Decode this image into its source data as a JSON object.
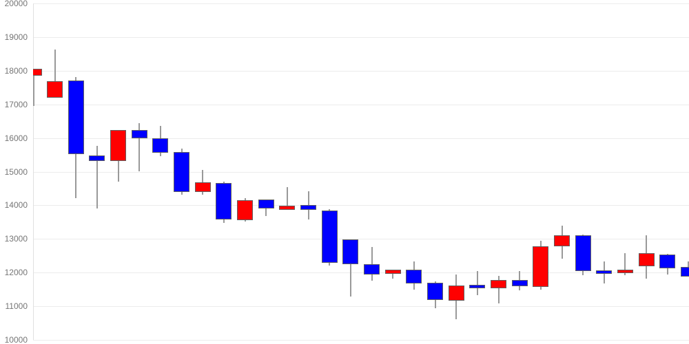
{
  "chart_data": {
    "type": "candlestick",
    "title": "",
    "xlabel": "",
    "ylabel": "",
    "grid": true,
    "legend": "none",
    "y_axis": {
      "min": 10000,
      "max": 20000,
      "step": 1000,
      "tick_labels": [
        "20000",
        "19000",
        "18000",
        "17000",
        "16000",
        "15000",
        "14000",
        "13000",
        "12000",
        "11000",
        "10000"
      ]
    },
    "colors": {
      "up": "#ff0000",
      "down": "#0000ff",
      "wick": "#999999",
      "candle_border": "#606060",
      "grid": "#ececec",
      "axis_line": "#e0e0e0",
      "label": "#757575",
      "background": "#ffffff"
    },
    "candles": [
      {
        "dir": "up",
        "open": 17850,
        "high": 18050,
        "low": 16950,
        "close": 18050
      },
      {
        "dir": "up",
        "open": 17200,
        "high": 18630,
        "low": 17200,
        "close": 17680
      },
      {
        "dir": "down",
        "open": 17700,
        "high": 17820,
        "low": 14220,
        "close": 15520
      },
      {
        "dir": "down",
        "open": 15490,
        "high": 15770,
        "low": 13910,
        "close": 15310
      },
      {
        "dir": "up",
        "open": 15310,
        "high": 16240,
        "low": 14700,
        "close": 16240
      },
      {
        "dir": "down",
        "open": 16240,
        "high": 16440,
        "low": 15000,
        "close": 15990
      },
      {
        "dir": "down",
        "open": 16000,
        "high": 16350,
        "low": 15450,
        "close": 15570
      },
      {
        "dir": "down",
        "open": 15580,
        "high": 15680,
        "low": 14310,
        "close": 14400
      },
      {
        "dir": "up",
        "open": 14400,
        "high": 15050,
        "low": 14310,
        "close": 14690
      },
      {
        "dir": "down",
        "open": 14670,
        "high": 14700,
        "low": 13470,
        "close": 13580
      },
      {
        "dir": "up",
        "open": 13560,
        "high": 14210,
        "low": 13510,
        "close": 14160
      },
      {
        "dir": "down",
        "open": 14170,
        "high": 14170,
        "low": 13680,
        "close": 13900
      },
      {
        "dir": "up",
        "open": 13860,
        "high": 14540,
        "low": 13860,
        "close": 13980
      },
      {
        "dir": "down",
        "open": 14010,
        "high": 14420,
        "low": 13570,
        "close": 13870
      },
      {
        "dir": "down",
        "open": 13840,
        "high": 13890,
        "low": 12210,
        "close": 12290
      },
      {
        "dir": "down",
        "open": 12980,
        "high": 12980,
        "low": 11290,
        "close": 12250
      },
      {
        "dir": "down",
        "open": 12250,
        "high": 12760,
        "low": 11750,
        "close": 11940
      },
      {
        "dir": "up",
        "open": 11970,
        "high": 12090,
        "low": 11820,
        "close": 12090
      },
      {
        "dir": "down",
        "open": 12090,
        "high": 12330,
        "low": 11490,
        "close": 11680
      },
      {
        "dir": "down",
        "open": 11700,
        "high": 11740,
        "low": 10950,
        "close": 11180
      },
      {
        "dir": "up",
        "open": 11160,
        "high": 11950,
        "low": 10620,
        "close": 11610
      },
      {
        "dir": "down",
        "open": 11630,
        "high": 12040,
        "low": 11320,
        "close": 11530
      },
      {
        "dir": "up",
        "open": 11540,
        "high": 11900,
        "low": 11080,
        "close": 11770
      },
      {
        "dir": "down",
        "open": 11780,
        "high": 12040,
        "low": 11470,
        "close": 11600
      },
      {
        "dir": "up",
        "open": 11580,
        "high": 12950,
        "low": 11490,
        "close": 12790
      },
      {
        "dir": "up",
        "open": 12790,
        "high": 13390,
        "low": 12420,
        "close": 13100
      },
      {
        "dir": "down",
        "open": 13100,
        "high": 13120,
        "low": 11920,
        "close": 12040
      },
      {
        "dir": "down",
        "open": 12070,
        "high": 12330,
        "low": 11680,
        "close": 11960
      },
      {
        "dir": "up",
        "open": 11990,
        "high": 12570,
        "low": 11920,
        "close": 12090
      },
      {
        "dir": "up",
        "open": 12190,
        "high": 13100,
        "low": 11820,
        "close": 12570
      },
      {
        "dir": "down",
        "open": 12540,
        "high": 12560,
        "low": 11940,
        "close": 12120
      },
      {
        "dir": "down",
        "open": 12160,
        "high": 12330,
        "low": 11890,
        "close": 11890
      }
    ]
  }
}
